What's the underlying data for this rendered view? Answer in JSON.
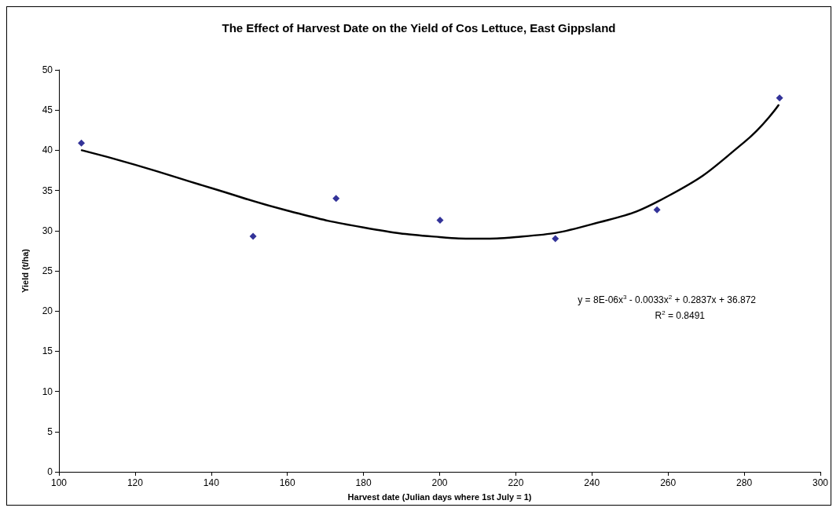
{
  "chart_data": {
    "type": "scatter",
    "title": "The Effect of Harvest Date on the Yield of Cos Lettuce, East Gippsland",
    "xlabel": "Harvest date (Julian days where 1st July = 1)",
    "ylabel": "Yield (t/ha)",
    "series": [
      {
        "color": "#000080",
        "marker": "diamond",
        "x": [
          105.9,
          151.0,
          172.8,
          200.1,
          230.4,
          257.1,
          289.3
        ],
        "values": [
          40.9,
          29.3,
          34.0,
          31.3,
          29.0,
          32.6,
          46.5
        ]
      },
      {
        "type": "line",
        "color": "#000000",
        "marker": "none",
        "line_style": "solid",
        "x": [
          106,
          120,
          140,
          160,
          180,
          200,
          210,
          220,
          240,
          260,
          280,
          289
        ],
        "values": [
          40.0,
          38.2,
          35.3,
          32.5,
          30.4,
          29.2,
          29.0,
          29.2,
          30.8,
          34.3,
          41.0,
          45.6
        ]
      }
    ],
    "annotations": [
      "y = 8E-06x$^{3}$ - 0.0033x$^{2}$ + 0.2837x + 36.872",
      "R$^{2}$ = 0.8491"
    ],
    "xlim": [
      100,
      300
    ],
    "xticks": [
      100,
      120,
      140,
      160,
      180,
      200,
      220,
      240,
      260,
      280,
      300
    ],
    "ylim": [
      0,
      50
    ],
    "yticks": [
      0,
      5,
      10,
      15,
      20,
      25,
      30,
      35,
      40,
      45,
      50
    ],
    "grid": false
  }
}
